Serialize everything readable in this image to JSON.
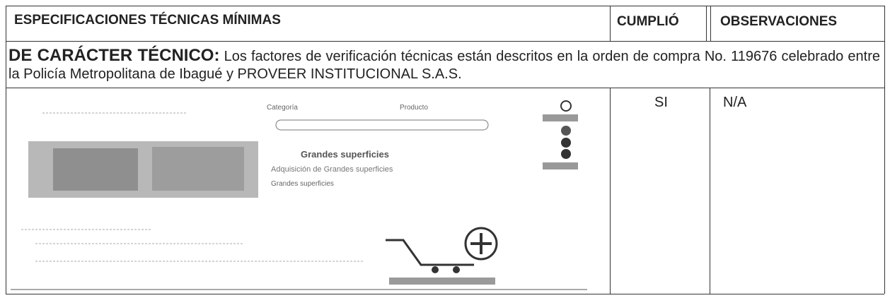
{
  "header": {
    "specification": "ESPECIFICACIONES TÉCNICAS MÍNIMAS",
    "complied": "CUMPLIÓ",
    "observations": "OBSERVACIONES"
  },
  "technical": {
    "label": "DE CARÁCTER TÉCNICO:",
    "text": "Los factores de verificación técnicas están descritos en la orden de compra No. 119676 celebrado entre la Policía Metropolitana de Ibagué y PROVEER INSTITUCIONAL S.A.S."
  },
  "rows": [
    {
      "screenshot": {
        "category": "Categoría",
        "product": "Producto",
        "section_title": "Grandes superficies",
        "heading": "Adquisición de Grandes superficies",
        "link": "Grandes superficies"
      },
      "complied": "SI",
      "observations": "N/A"
    }
  ]
}
